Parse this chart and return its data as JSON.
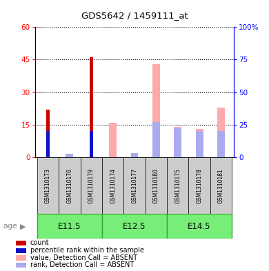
{
  "title": "GDS5642 / 1459111_at",
  "samples": [
    "GSM1310173",
    "GSM1310176",
    "GSM1310179",
    "GSM1310174",
    "GSM1310177",
    "GSM1310180",
    "GSM1310175",
    "GSM1310178",
    "GSM1310181"
  ],
  "age_groups": [
    {
      "label": "E11.5",
      "indices": [
        0,
        1,
        2
      ]
    },
    {
      "label": "E12.5",
      "indices": [
        3,
        4,
        5
      ]
    },
    {
      "label": "E14.5",
      "indices": [
        6,
        7,
        8
      ]
    }
  ],
  "count": [
    22,
    0,
    46,
    0,
    0,
    0,
    0,
    0,
    0
  ],
  "percentile_rank": [
    20,
    0,
    20,
    0,
    0,
    0,
    0,
    0,
    0
  ],
  "value_absent": [
    0,
    0,
    0,
    16,
    2,
    43,
    14,
    13,
    23
  ],
  "rank_absent_pct": [
    0,
    2.5,
    0,
    0,
    3,
    27,
    22,
    20,
    20
  ],
  "left_ylim": [
    0,
    60
  ],
  "left_yticks": [
    0,
    15,
    30,
    45,
    60
  ],
  "right_ylim": [
    0,
    100
  ],
  "right_yticks": [
    0,
    25,
    50,
    75,
    100
  ],
  "count_color": "#cc0000",
  "rank_color": "#1111cc",
  "value_absent_color": "#ffaaaa",
  "rank_absent_color": "#aaaaee",
  "age_group_color": "#77ee77",
  "age_group_border": "#33aa33",
  "sample_bg_color": "#cccccc",
  "legend_items": [
    {
      "color": "#cc0000",
      "label": "count"
    },
    {
      "color": "#1111cc",
      "label": "percentile rank within the sample"
    },
    {
      "color": "#ffaaaa",
      "label": "value, Detection Call = ABSENT"
    },
    {
      "color": "#aaaaee",
      "label": "rank, Detection Call = ABSENT"
    }
  ]
}
